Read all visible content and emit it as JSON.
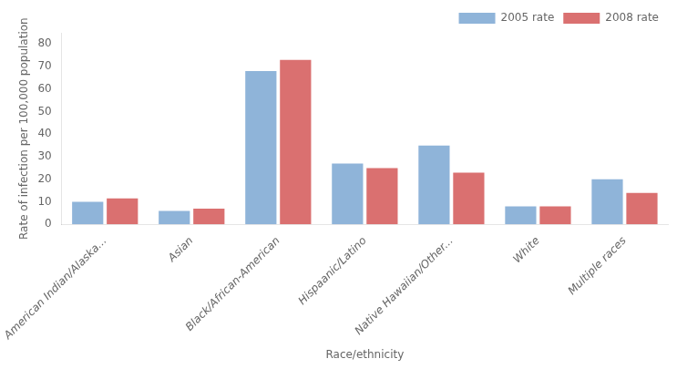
{
  "chart_data": {
    "type": "bar",
    "categories": [
      "American Indian/Alaska...",
      "Asian",
      "Black/African-American",
      "Hispaanic/Latino",
      "Native Hawaiian/Other...",
      "White",
      "Multiple races"
    ],
    "series": [
      {
        "name": "2005 rate",
        "color": "#8FB4D9",
        "values": [
          10,
          6,
          68,
          27,
          35,
          8,
          20
        ]
      },
      {
        "name": "2008 rate",
        "color": "#DA7070",
        "values": [
          11.5,
          7,
          73,
          25,
          23,
          8,
          14
        ]
      }
    ],
    "xlabel": "Race/ethnicity",
    "ylabel": "Rate of infection per 100,000 population",
    "ylim": [
      0,
      85
    ],
    "yticks": [
      0,
      10,
      20,
      30,
      40,
      50,
      60,
      70,
      80
    ],
    "grid": false,
    "legend": "upper right"
  }
}
